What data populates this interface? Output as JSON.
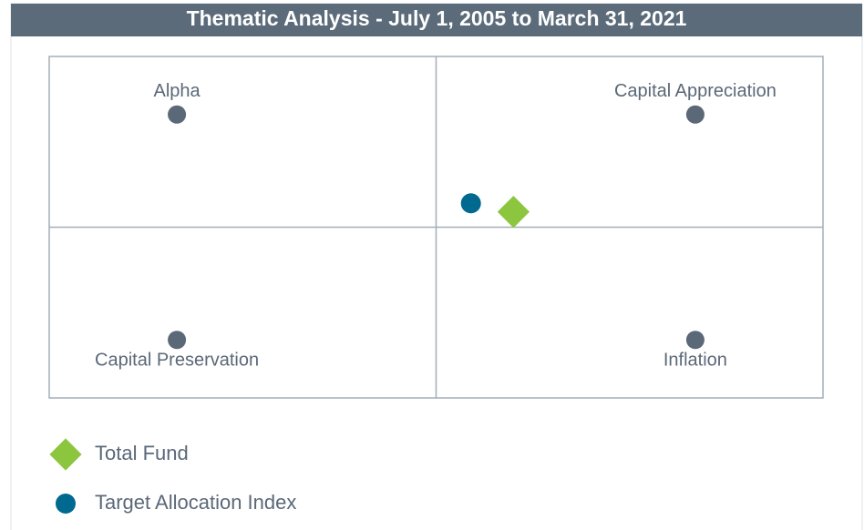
{
  "chart_data": {
    "type": "scatter",
    "title": "Thematic Analysis - July 1, 2005 to March 31, 2021",
    "xlim": [
      -1,
      1
    ],
    "ylim": [
      -1,
      1
    ],
    "points": [
      {
        "label": "Alpha",
        "x": -0.67,
        "y": 0.66
      },
      {
        "label": "Capital Appreciation",
        "x": 0.67,
        "y": 0.66
      },
      {
        "label": "Capital Preservation",
        "x": -0.67,
        "y": -0.66
      },
      {
        "label": "Inflation",
        "x": 0.67,
        "y": -0.66
      }
    ],
    "point_color": "#5b6878",
    "series": [
      {
        "name": "Total Fund",
        "color": "#8cc63f",
        "marker": "diamond",
        "x": [
          0.2
        ],
        "values": [
          0.09
        ]
      },
      {
        "name": "Target Allocation Index",
        "color": "#00698f",
        "marker": "circle",
        "x": [
          0.09
        ],
        "values": [
          0.14
        ]
      }
    ]
  }
}
